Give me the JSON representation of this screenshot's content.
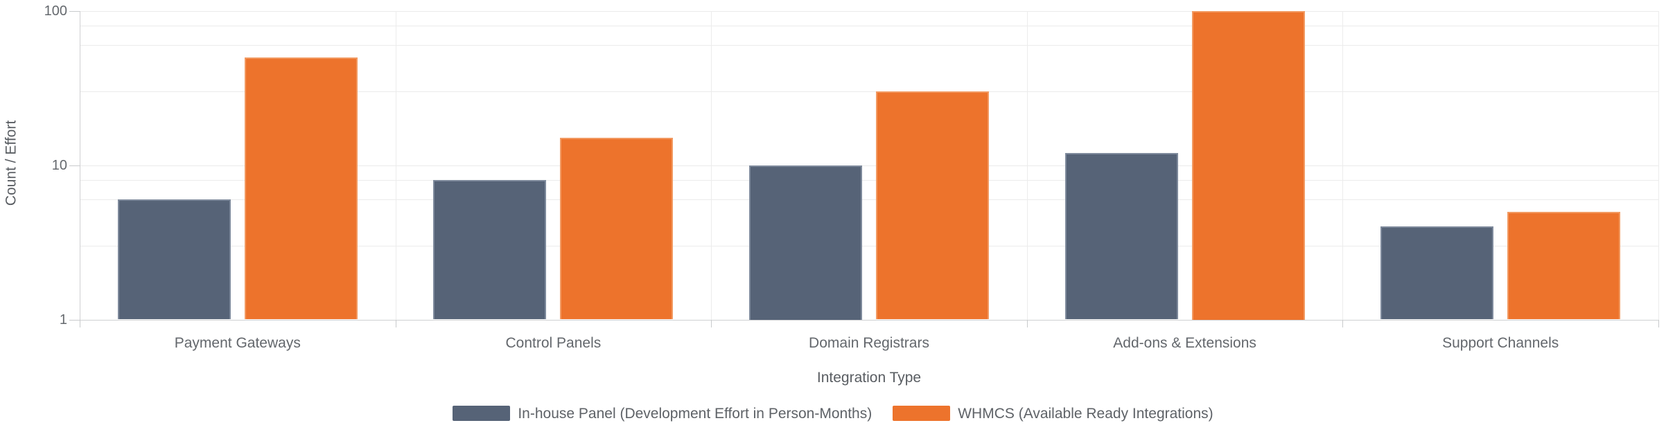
{
  "chart_data": {
    "type": "bar",
    "title": "",
    "xlabel": "Integration Type",
    "ylabel": "Count / Effort",
    "y_scale": "log",
    "ylim": [
      1,
      100
    ],
    "y_ticks": [
      1,
      10,
      100
    ],
    "gridline_values": [
      1,
      3,
      6,
      8,
      10,
      30,
      60,
      80,
      100
    ],
    "grid": true,
    "legend_position": "bottom",
    "categories": [
      "Payment Gateways",
      "Control Panels",
      "Domain Registrars",
      "Add-ons & Extensions",
      "Support Channels"
    ],
    "series": [
      {
        "name": "In-house Panel (Development Effort in Person-Months)",
        "values": [
          6,
          8,
          10,
          12,
          4
        ],
        "color": "#566377",
        "border_color": "#7e8a9c"
      },
      {
        "name": "WHMCS (Available Ready Integrations)",
        "values": [
          50,
          15,
          30,
          100,
          5
        ],
        "color": "#ed732c",
        "border_color": "#f29a62"
      }
    ]
  }
}
